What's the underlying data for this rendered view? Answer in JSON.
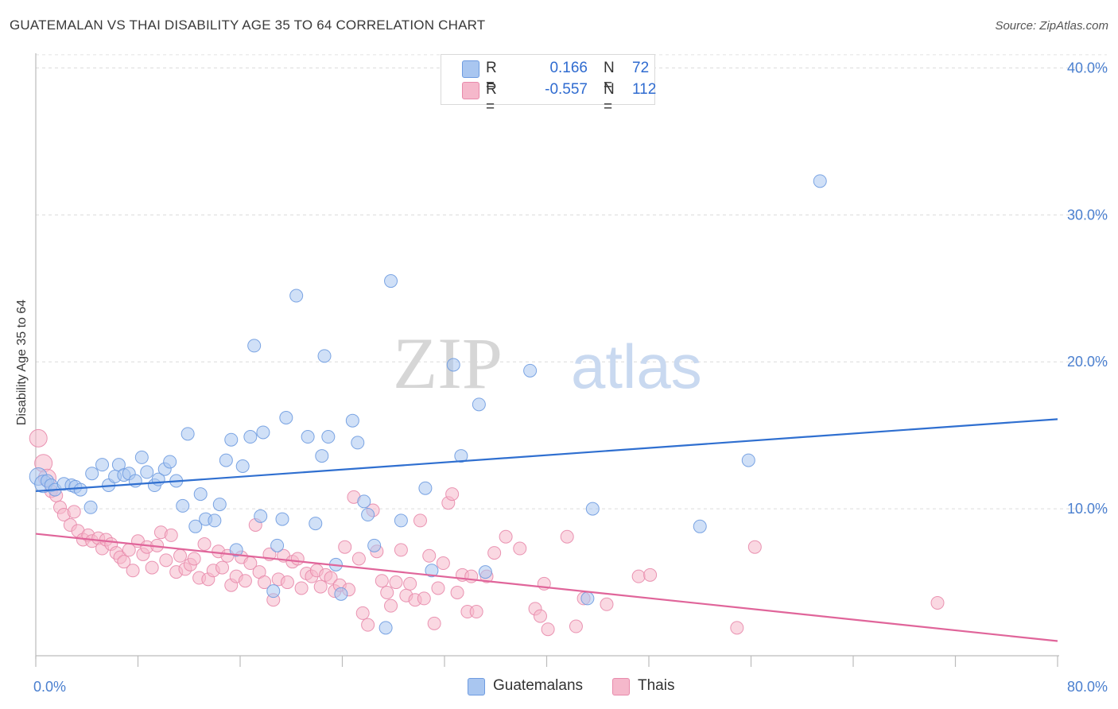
{
  "header": {
    "title": "GUATEMALAN VS THAI DISABILITY AGE 35 TO 64 CORRELATION CHART",
    "source": "Source: ZipAtlas.com"
  },
  "watermark": {
    "zip": "ZIP",
    "atlas": "atlas"
  },
  "legend": {
    "rows": [
      {
        "r_label": "R =",
        "r_value": "0.166",
        "n_label": "N =",
        "n_value": "72",
        "color": "#a9c6f0"
      },
      {
        "r_label": "R =",
        "r_value": "-0.557",
        "n_label": "N =",
        "n_value": "112",
        "color": "#f5b8cb"
      }
    ]
  },
  "bottom_legend": {
    "items": [
      {
        "label": "Guatemalans",
        "color": "#a9c6f0"
      },
      {
        "label": "Thais",
        "color": "#f5b8cb"
      }
    ]
  },
  "chart_data": {
    "type": "scatter",
    "title": "GUATEMALAN VS THAI DISABILITY AGE 35 TO 64 CORRELATION CHART",
    "ylabel": "Disability Age 35 to 64",
    "xlabel": "",
    "xlim": [
      0,
      80
    ],
    "ylim": [
      0,
      41
    ],
    "x_tick_labels": [
      "0.0%",
      "80.0%"
    ],
    "y_ticks": [
      10,
      20,
      30,
      40
    ],
    "y_tick_labels": [
      "10.0%",
      "20.0%",
      "30.0%",
      "40.0%"
    ],
    "grid": true,
    "colors": {
      "blue_fill": "#a9c6f0",
      "blue_line": "#2f6fd0",
      "pink_fill": "#f5b8cb",
      "pink_line": "#e0659a",
      "tick": "#4a7fcf"
    },
    "series": [
      {
        "name": "Guatemalans",
        "r": 0.166,
        "n": 72,
        "trend": {
          "x": [
            0,
            80
          ],
          "y": [
            11.2,
            16.1
          ]
        },
        "points": [
          [
            0.2,
            12.2
          ],
          [
            0.6,
            11.7
          ],
          [
            0.9,
            11.9
          ],
          [
            1.2,
            11.6
          ],
          [
            1.5,
            11.3
          ],
          [
            2.2,
            11.7
          ],
          [
            2.8,
            11.6
          ],
          [
            3.1,
            11.5
          ],
          [
            3.5,
            11.3
          ],
          [
            4.3,
            10.1
          ],
          [
            4.4,
            12.4
          ],
          [
            5.2,
            13.0
          ],
          [
            5.7,
            11.6
          ],
          [
            6.2,
            12.2
          ],
          [
            6.5,
            13.0
          ],
          [
            6.9,
            12.3
          ],
          [
            7.3,
            12.4
          ],
          [
            7.8,
            11.9
          ],
          [
            8.3,
            13.5
          ],
          [
            8.7,
            12.5
          ],
          [
            9.3,
            11.6
          ],
          [
            9.6,
            12.0
          ],
          [
            10.1,
            12.7
          ],
          [
            10.5,
            13.2
          ],
          [
            11.0,
            11.9
          ],
          [
            11.5,
            10.2
          ],
          [
            11.9,
            15.1
          ],
          [
            12.5,
            8.8
          ],
          [
            12.9,
            11.0
          ],
          [
            13.3,
            9.3
          ],
          [
            14.0,
            9.2
          ],
          [
            14.4,
            10.3
          ],
          [
            14.9,
            13.3
          ],
          [
            15.3,
            14.7
          ],
          [
            15.7,
            7.2
          ],
          [
            16.2,
            12.9
          ],
          [
            16.8,
            14.9
          ],
          [
            17.1,
            21.1
          ],
          [
            17.6,
            9.5
          ],
          [
            17.8,
            15.2
          ],
          [
            18.6,
            4.4
          ],
          [
            18.9,
            7.5
          ],
          [
            19.3,
            9.3
          ],
          [
            19.6,
            16.2
          ],
          [
            20.4,
            24.5
          ],
          [
            21.3,
            14.9
          ],
          [
            21.9,
            9.0
          ],
          [
            22.4,
            13.6
          ],
          [
            22.6,
            20.4
          ],
          [
            22.9,
            14.9
          ],
          [
            23.5,
            6.2
          ],
          [
            23.9,
            4.2
          ],
          [
            24.8,
            16.0
          ],
          [
            25.2,
            14.5
          ],
          [
            25.7,
            10.5
          ],
          [
            26.0,
            9.6
          ],
          [
            26.5,
            7.5
          ],
          [
            27.4,
            1.9
          ],
          [
            27.8,
            25.5
          ],
          [
            28.6,
            9.2
          ],
          [
            30.5,
            11.4
          ],
          [
            31.0,
            5.8
          ],
          [
            32.7,
            19.8
          ],
          [
            33.3,
            13.6
          ],
          [
            34.7,
            17.1
          ],
          [
            35.2,
            5.7
          ],
          [
            38.7,
            19.4
          ],
          [
            43.2,
            3.9
          ],
          [
            43.6,
            10.0
          ],
          [
            52.0,
            8.8
          ],
          [
            55.8,
            13.3
          ],
          [
            61.4,
            32.3
          ]
        ]
      },
      {
        "name": "Thais",
        "r": -0.557,
        "n": 112,
        "trend": {
          "x": [
            0,
            80
          ],
          "y": [
            8.3,
            1.0
          ]
        },
        "points": [
          [
            0.2,
            14.8
          ],
          [
            0.6,
            13.1
          ],
          [
            0.9,
            12.1
          ],
          [
            1.2,
            11.2
          ],
          [
            1.6,
            10.9
          ],
          [
            1.9,
            10.1
          ],
          [
            2.2,
            9.6
          ],
          [
            2.7,
            8.9
          ],
          [
            3.0,
            9.8
          ],
          [
            3.3,
            8.5
          ],
          [
            3.7,
            7.9
          ],
          [
            4.1,
            8.2
          ],
          [
            4.4,
            7.8
          ],
          [
            4.9,
            8.0
          ],
          [
            5.2,
            7.3
          ],
          [
            5.5,
            7.9
          ],
          [
            5.9,
            7.6
          ],
          [
            6.3,
            7.0
          ],
          [
            6.6,
            6.7
          ],
          [
            6.9,
            6.4
          ],
          [
            7.3,
            7.2
          ],
          [
            7.6,
            5.8
          ],
          [
            8.0,
            7.8
          ],
          [
            8.4,
            6.9
          ],
          [
            8.7,
            7.4
          ],
          [
            9.1,
            6.0
          ],
          [
            9.5,
            7.5
          ],
          [
            9.8,
            8.4
          ],
          [
            10.2,
            6.5
          ],
          [
            10.6,
            8.2
          ],
          [
            11.0,
            5.7
          ],
          [
            11.3,
            6.8
          ],
          [
            11.7,
            5.9
          ],
          [
            12.1,
            6.2
          ],
          [
            12.4,
            6.6
          ],
          [
            12.8,
            5.3
          ],
          [
            13.2,
            7.6
          ],
          [
            13.5,
            5.2
          ],
          [
            13.9,
            5.8
          ],
          [
            14.3,
            7.1
          ],
          [
            14.6,
            6.0
          ],
          [
            15.0,
            6.8
          ],
          [
            15.3,
            4.8
          ],
          [
            15.7,
            5.4
          ],
          [
            16.1,
            6.7
          ],
          [
            16.4,
            5.1
          ],
          [
            16.8,
            6.3
          ],
          [
            17.2,
            8.9
          ],
          [
            17.5,
            5.7
          ],
          [
            17.9,
            5.0
          ],
          [
            18.3,
            6.9
          ],
          [
            18.6,
            3.8
          ],
          [
            19.0,
            5.2
          ],
          [
            19.4,
            6.8
          ],
          [
            19.7,
            5.0
          ],
          [
            20.1,
            6.4
          ],
          [
            20.5,
            6.6
          ],
          [
            20.8,
            4.6
          ],
          [
            21.2,
            5.6
          ],
          [
            21.6,
            5.4
          ],
          [
            22.0,
            5.8
          ],
          [
            22.3,
            4.7
          ],
          [
            22.7,
            5.5
          ],
          [
            23.1,
            5.3
          ],
          [
            23.4,
            4.4
          ],
          [
            23.8,
            4.8
          ],
          [
            24.2,
            7.4
          ],
          [
            24.5,
            4.5
          ],
          [
            24.9,
            10.8
          ],
          [
            25.3,
            6.6
          ],
          [
            25.6,
            2.9
          ],
          [
            26.0,
            2.1
          ],
          [
            26.4,
            9.9
          ],
          [
            26.7,
            7.1
          ],
          [
            27.1,
            5.1
          ],
          [
            27.5,
            4.3
          ],
          [
            27.8,
            3.4
          ],
          [
            28.2,
            5.0
          ],
          [
            28.6,
            7.2
          ],
          [
            29.0,
            4.1
          ],
          [
            29.3,
            4.9
          ],
          [
            29.7,
            3.8
          ],
          [
            30.1,
            9.2
          ],
          [
            30.4,
            3.9
          ],
          [
            30.8,
            6.8
          ],
          [
            31.2,
            2.2
          ],
          [
            31.5,
            4.6
          ],
          [
            31.9,
            6.3
          ],
          [
            32.3,
            10.4
          ],
          [
            32.6,
            11.0
          ],
          [
            33.0,
            4.3
          ],
          [
            33.4,
            5.5
          ],
          [
            33.8,
            3.0
          ],
          [
            34.1,
            5.4
          ],
          [
            34.5,
            3.0
          ],
          [
            35.3,
            5.4
          ],
          [
            35.9,
            7.0
          ],
          [
            36.8,
            8.1
          ],
          [
            37.9,
            7.3
          ],
          [
            39.1,
            3.2
          ],
          [
            39.5,
            2.7
          ],
          [
            39.8,
            4.9
          ],
          [
            40.1,
            1.8
          ],
          [
            41.6,
            8.1
          ],
          [
            42.3,
            2.0
          ],
          [
            42.9,
            3.9
          ],
          [
            44.7,
            3.5
          ],
          [
            47.2,
            5.4
          ],
          [
            48.1,
            5.5
          ],
          [
            54.9,
            1.9
          ],
          [
            56.3,
            7.4
          ],
          [
            70.6,
            3.6
          ]
        ]
      }
    ]
  }
}
